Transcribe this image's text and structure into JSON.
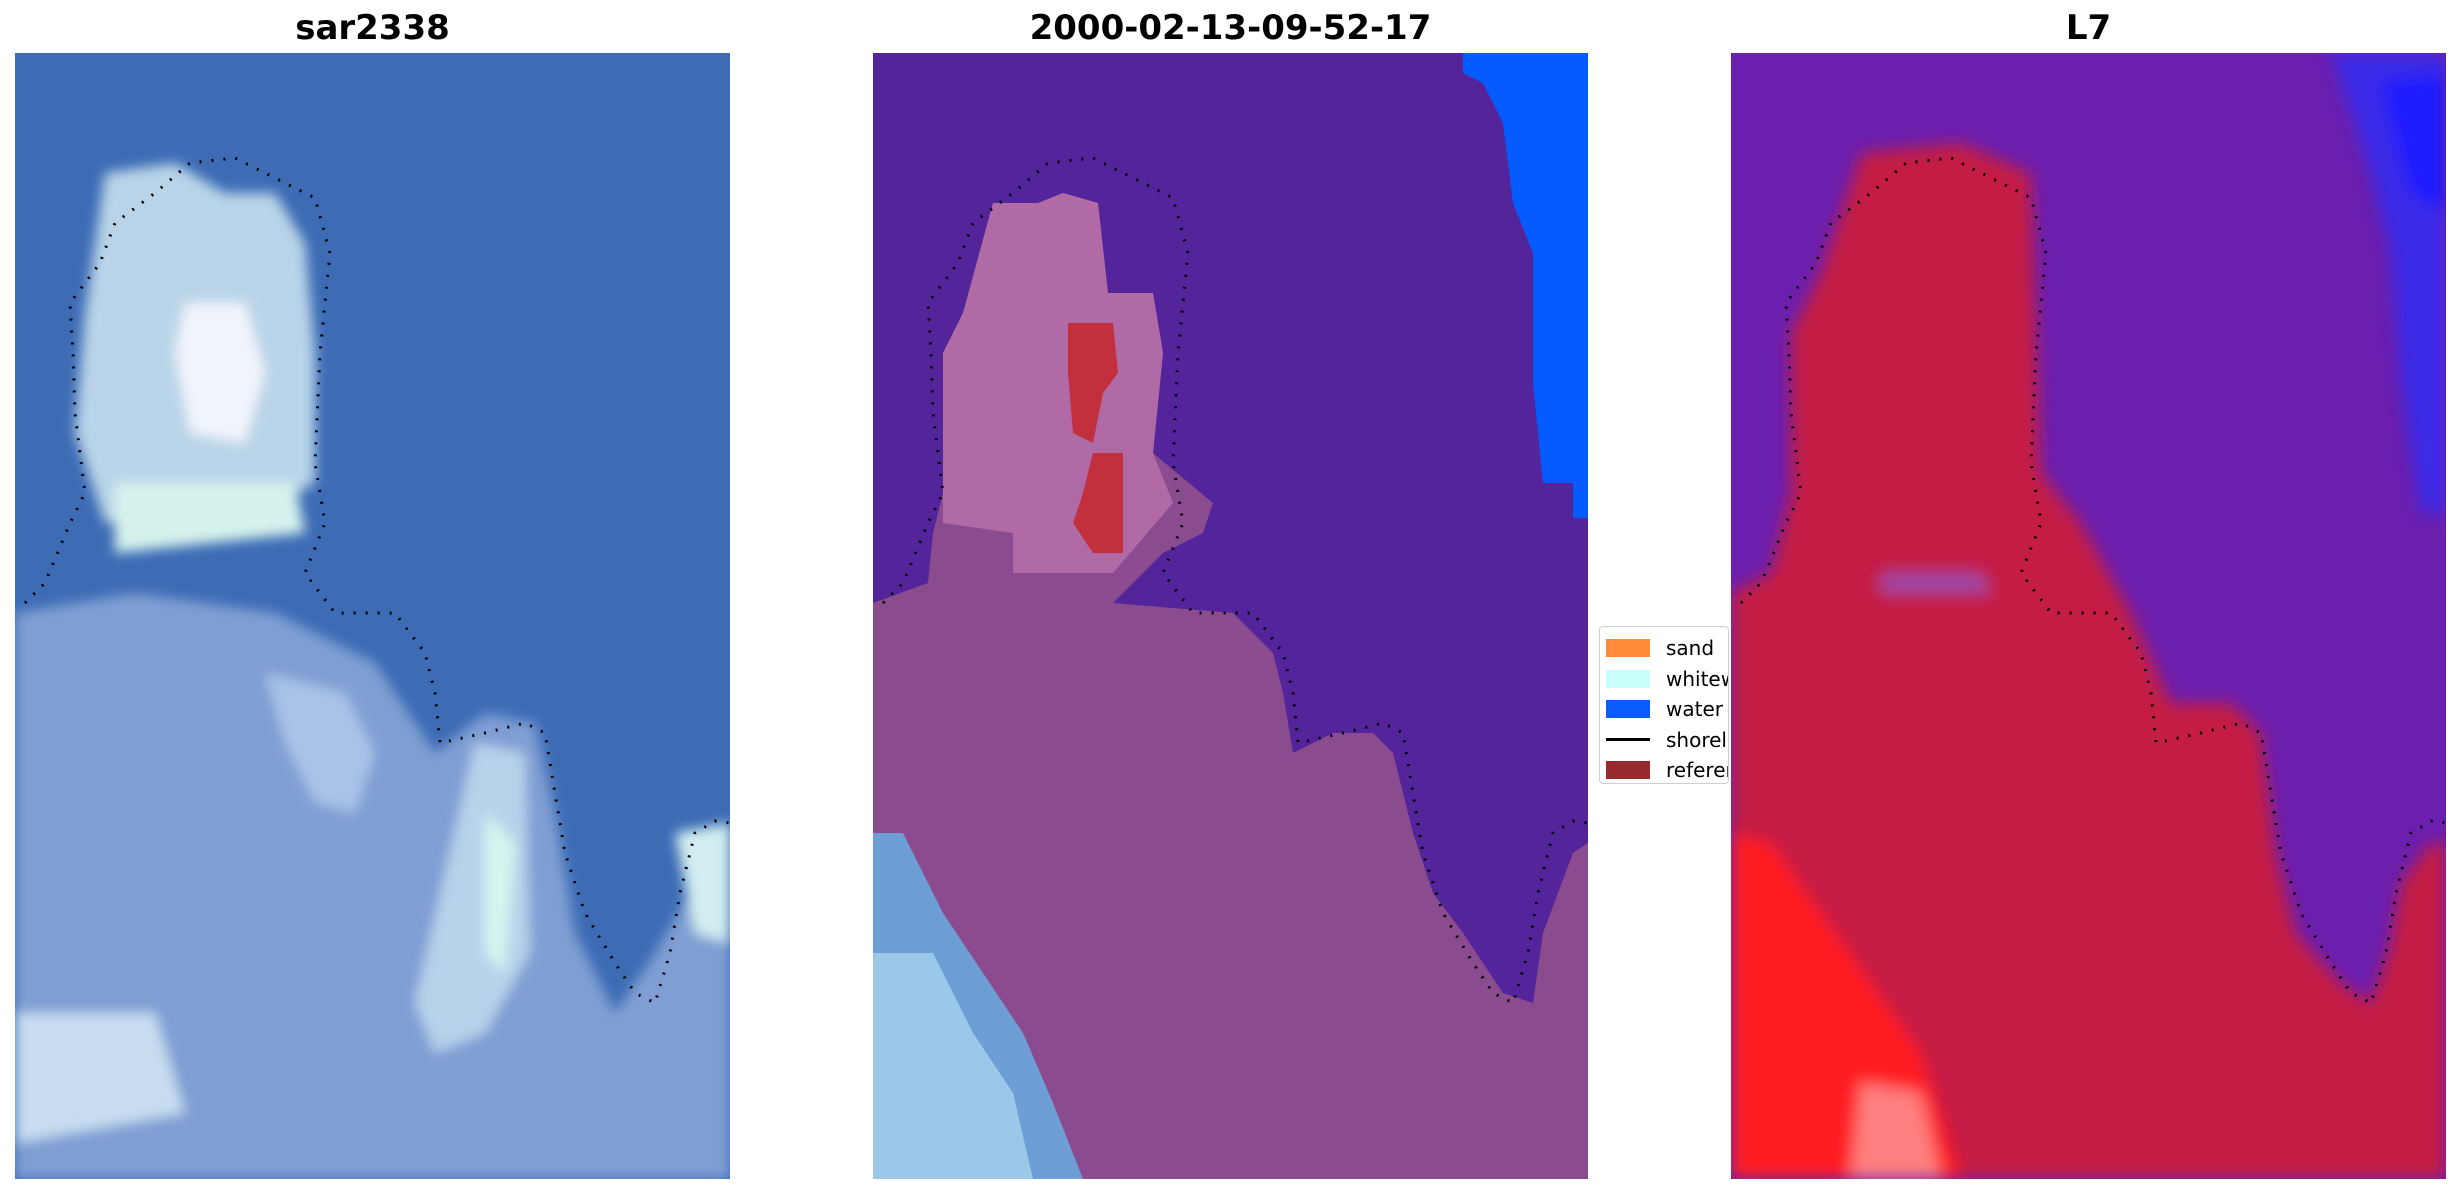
{
  "panels": [
    {
      "title": "sar2338"
    },
    {
      "title": "2000-02-13-09-52-17"
    },
    {
      "title": "L7"
    }
  ],
  "legend": {
    "items": [
      {
        "label": "sand",
        "color": "#ff8c3a",
        "kind": "patch"
      },
      {
        "label": "whitewater",
        "color": "#c8fff8",
        "kind": "patch"
      },
      {
        "label": "water",
        "color": "#0a5cff",
        "kind": "patch"
      },
      {
        "label": "shoreline",
        "color": "#000000",
        "kind": "line"
      },
      {
        "label": "reference shoreline",
        "color": "#962a2e",
        "kind": "patch"
      }
    ]
  },
  "colors": {
    "rgb_water": "#3d6eb6",
    "rgb_land": "#8aa6d6",
    "class_water_bg": "#54249a",
    "class_land": "#8a4c8e",
    "class_sand_red": "#c2303e",
    "class_water_blue": "#045cff",
    "ndwi_purple": "#6d1fb0",
    "ndwi_red": "#c01540",
    "ndwi_bright_red": "#ff1a1a",
    "ndwi_blue": "#2233ff"
  }
}
